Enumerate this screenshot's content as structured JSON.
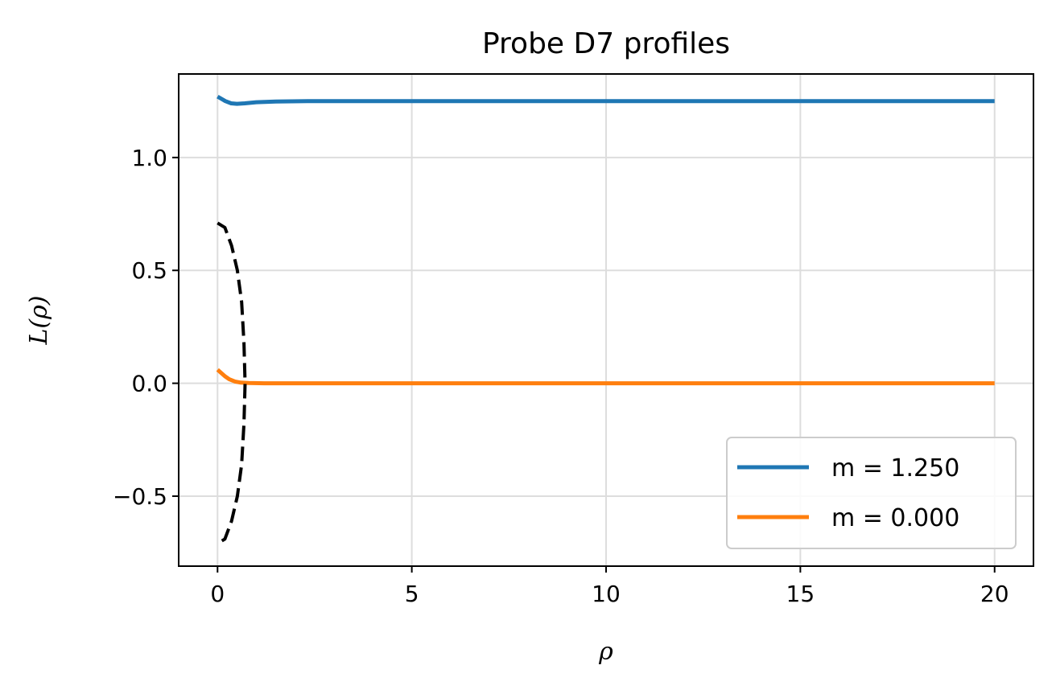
{
  "chart_data": {
    "type": "line",
    "title": "Probe D7 profiles",
    "xlabel": "ρ",
    "ylabel": "L(ρ)",
    "xlim": [
      -1,
      21
    ],
    "ylim": [
      -0.81,
      1.37
    ],
    "xticks": [
      0,
      5,
      10,
      15,
      20
    ],
    "xtick_labels": [
      "0",
      "5",
      "10",
      "15",
      "20"
    ],
    "yticks": [
      -0.5,
      0.0,
      0.5,
      1.0
    ],
    "ytick_labels": [
      "−0.5",
      "0.0",
      "0.5",
      "1.0"
    ],
    "grid": true,
    "legend_position": "lower-right",
    "series": [
      {
        "name": "m = 1.250",
        "color": "#1f77b4",
        "style": "solid",
        "x": [
          0,
          0.1,
          0.2,
          0.35,
          0.5,
          0.7,
          1.0,
          1.5,
          2.5,
          5,
          10,
          15,
          20
        ],
        "y": [
          1.27,
          1.26,
          1.25,
          1.24,
          1.238,
          1.24,
          1.245,
          1.248,
          1.25,
          1.25,
          1.25,
          1.25,
          1.25
        ]
      },
      {
        "name": "m = 0.000",
        "color": "#ff7f0e",
        "style": "solid",
        "x": [
          0,
          0.1,
          0.2,
          0.3,
          0.45,
          0.6,
          0.8,
          1.2,
          2,
          5,
          10,
          15,
          20
        ],
        "y": [
          0.06,
          0.045,
          0.03,
          0.018,
          0.008,
          0.003,
          0.001,
          0.0,
          0.0,
          0.0,
          0.0,
          0.0,
          0.0
        ]
      },
      {
        "name": "",
        "color": "#000000",
        "style": "dashed",
        "x": [
          0.0,
          0.19,
          0.36,
          0.51,
          0.62,
          0.68,
          0.71,
          0.68,
          0.62,
          0.51,
          0.36,
          0.19,
          0.0
        ],
        "y": [
          0.71,
          0.69,
          0.61,
          0.5,
          0.36,
          0.18,
          0.0,
          -0.18,
          -0.36,
          -0.5,
          -0.61,
          -0.69,
          -0.71
        ]
      }
    ]
  }
}
